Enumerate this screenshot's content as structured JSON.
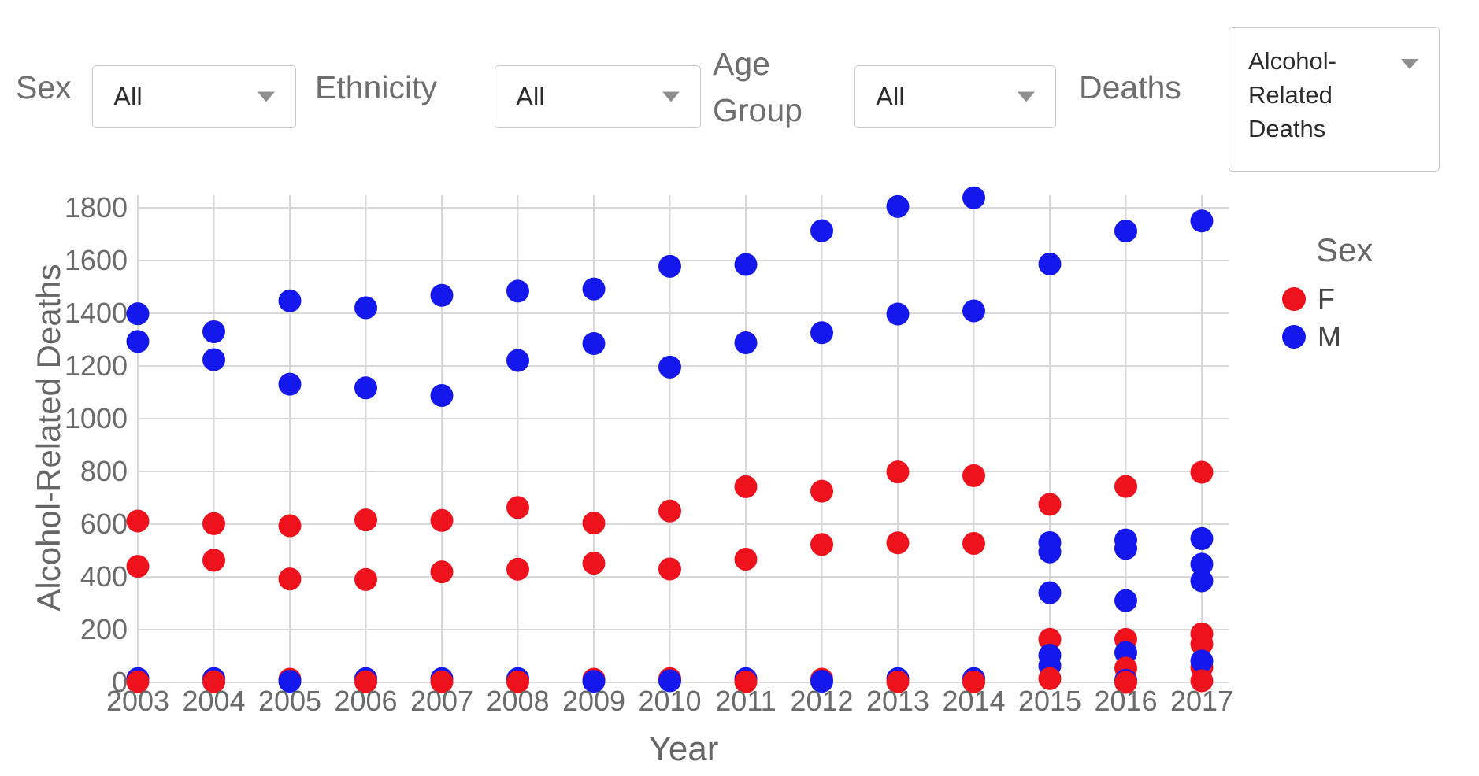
{
  "controls": {
    "sex_label": "Sex",
    "sex_value": "All",
    "ethnicity_label": "Ethnicity",
    "ethnicity_value": "All",
    "age_group_label": "Age Group",
    "age_group_value": "All",
    "deaths_label": "Deaths",
    "deaths_value": "Alcohol-Related Deaths"
  },
  "chart_data": {
    "type": "scatter",
    "xlabel": "Year",
    "ylabel": "Alcohol-Related Deaths",
    "x_ticks": [
      2003,
      2004,
      2005,
      2006,
      2007,
      2008,
      2009,
      2010,
      2011,
      2012,
      2013,
      2014,
      2015,
      2016,
      2017
    ],
    "y_ticks": [
      0,
      200,
      400,
      600,
      800,
      1000,
      1200,
      1400,
      1600,
      1800
    ],
    "xlim": [
      2002.6,
      2017.4
    ],
    "ylim": [
      0,
      1850
    ],
    "grid": true,
    "legend": {
      "title": "Sex",
      "position": "right",
      "entries": [
        {
          "label": "F",
          "color": "#ee121c"
        },
        {
          "label": "M",
          "color": "#1418ec"
        }
      ]
    },
    "points": [
      [
        2003,
        "M",
        1398
      ],
      [
        2003,
        "M",
        1293
      ],
      [
        2003,
        "F",
        612
      ],
      [
        2003,
        "F",
        440
      ],
      [
        2003,
        "M",
        14
      ],
      [
        2003,
        "F",
        2
      ],
      [
        2004,
        "M",
        1330
      ],
      [
        2004,
        "M",
        1224
      ],
      [
        2004,
        "F",
        602
      ],
      [
        2004,
        "F",
        463
      ],
      [
        2004,
        "M",
        14
      ],
      [
        2004,
        "F",
        2
      ],
      [
        2005,
        "M",
        1447
      ],
      [
        2005,
        "M",
        1131
      ],
      [
        2005,
        "F",
        594
      ],
      [
        2005,
        "F",
        392
      ],
      [
        2005,
        "F",
        12
      ],
      [
        2005,
        "M",
        4
      ],
      [
        2006,
        "M",
        1421
      ],
      [
        2006,
        "M",
        1117
      ],
      [
        2006,
        "F",
        616
      ],
      [
        2006,
        "F",
        390
      ],
      [
        2006,
        "M",
        14
      ],
      [
        2006,
        "F",
        2
      ],
      [
        2007,
        "M",
        1468
      ],
      [
        2007,
        "M",
        1088
      ],
      [
        2007,
        "F",
        614
      ],
      [
        2007,
        "F",
        419
      ],
      [
        2007,
        "M",
        14
      ],
      [
        2007,
        "F",
        2
      ],
      [
        2008,
        "M",
        1484
      ],
      [
        2008,
        "M",
        1221
      ],
      [
        2008,
        "F",
        663
      ],
      [
        2008,
        "F",
        429
      ],
      [
        2008,
        "M",
        14
      ],
      [
        2008,
        "F",
        2
      ],
      [
        2009,
        "M",
        1492
      ],
      [
        2009,
        "M",
        1285
      ],
      [
        2009,
        "F",
        604
      ],
      [
        2009,
        "F",
        452
      ],
      [
        2009,
        "F",
        12
      ],
      [
        2009,
        "M",
        4
      ],
      [
        2010,
        "M",
        1578
      ],
      [
        2010,
        "M",
        1196
      ],
      [
        2010,
        "F",
        650
      ],
      [
        2010,
        "F",
        430
      ],
      [
        2010,
        "F",
        14
      ],
      [
        2010,
        "M",
        6
      ],
      [
        2011,
        "M",
        1585
      ],
      [
        2011,
        "M",
        1288
      ],
      [
        2011,
        "F",
        742
      ],
      [
        2011,
        "F",
        467
      ],
      [
        2011,
        "M",
        14
      ],
      [
        2011,
        "F",
        2
      ],
      [
        2012,
        "M",
        1713
      ],
      [
        2012,
        "M",
        1326
      ],
      [
        2012,
        "F",
        725
      ],
      [
        2012,
        "F",
        523
      ],
      [
        2012,
        "F",
        12
      ],
      [
        2012,
        "M",
        4
      ],
      [
        2013,
        "M",
        1805
      ],
      [
        2013,
        "M",
        1397
      ],
      [
        2013,
        "F",
        798
      ],
      [
        2013,
        "F",
        529
      ],
      [
        2013,
        "M",
        14
      ],
      [
        2013,
        "F",
        2
      ],
      [
        2014,
        "M",
        1838
      ],
      [
        2014,
        "M",
        1409
      ],
      [
        2014,
        "F",
        784
      ],
      [
        2014,
        "F",
        527
      ],
      [
        2014,
        "M",
        14
      ],
      [
        2014,
        "F",
        2
      ],
      [
        2015,
        "M",
        1587
      ],
      [
        2015,
        "F",
        675
      ],
      [
        2015,
        "M",
        530
      ],
      [
        2015,
        "M",
        495
      ],
      [
        2015,
        "M",
        340
      ],
      [
        2015,
        "F",
        163
      ],
      [
        2015,
        "M",
        103
      ],
      [
        2015,
        "M",
        63
      ],
      [
        2015,
        "F",
        14
      ],
      [
        2016,
        "M",
        1712
      ],
      [
        2016,
        "F",
        743
      ],
      [
        2016,
        "M",
        540
      ],
      [
        2016,
        "M",
        508
      ],
      [
        2016,
        "M",
        310
      ],
      [
        2016,
        "F",
        163
      ],
      [
        2016,
        "M",
        113
      ],
      [
        2016,
        "F",
        54
      ],
      [
        2016,
        "M",
        8
      ],
      [
        2016,
        "F",
        0
      ],
      [
        2017,
        "M",
        1750
      ],
      [
        2017,
        "F",
        797
      ],
      [
        2017,
        "M",
        545
      ],
      [
        2017,
        "M",
        448
      ],
      [
        2017,
        "M",
        385
      ],
      [
        2017,
        "F",
        184
      ],
      [
        2017,
        "F",
        146
      ],
      [
        2017,
        "F",
        57
      ],
      [
        2017,
        "M",
        81
      ],
      [
        2017,
        "F",
        6
      ]
    ],
    "style": {
      "grid_color": "#d8d8d8",
      "tick_color": "#6b6b6b",
      "title_color": "#666666",
      "legend_label_color": "#444444",
      "marker_radius": 14.5
    }
  }
}
